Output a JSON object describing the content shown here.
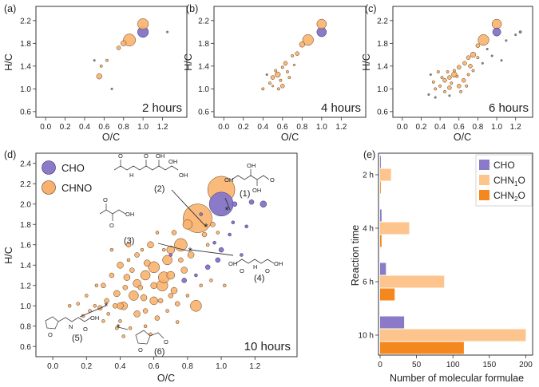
{
  "colors": {
    "cho": "#8a7ac8",
    "chno": "#f9b26e",
    "chn1o": "#fdc48e",
    "chn2o": "#f5871f",
    "grey": "#888888"
  },
  "vk_axes": {
    "xlabel": "O/C",
    "ylabel": "H/C",
    "xlim": [
      -0.1,
      1.45
    ],
    "ylim": [
      0.5,
      2.45
    ],
    "xticks": [
      "0.0",
      "0.2",
      "0.4",
      "0.6",
      "0.8",
      "1.0",
      "1.2"
    ],
    "yticks": [
      "0.6",
      "1.0",
      "1.4",
      "1.8",
      "2.2"
    ],
    "yticks_d": [
      "0.6",
      "0.8",
      "1.0",
      "1.2",
      "1.4",
      "1.6",
      "1.8",
      "2.0",
      "2.2",
      "2.4"
    ]
  },
  "panels": {
    "a": {
      "label": "(a)",
      "time": "2 hours"
    },
    "b": {
      "label": "(b)",
      "time": "4 hours"
    },
    "c": {
      "label": "(c)",
      "time": "6 hours"
    },
    "d": {
      "label": "(d)",
      "time": "10 hours",
      "legend": [
        "CHO",
        "CHNO"
      ]
    },
    "e": {
      "label": "(e)"
    }
  },
  "annotations": [
    "(1)",
    "(2)",
    "(3)",
    "(4)",
    "(5)",
    "(6)"
  ],
  "mol_text": {
    "oh": "OH",
    "o": "O",
    "n": "N",
    "h": "H"
  },
  "chart_data": [
    {
      "type": "scatter",
      "panel": "a",
      "points": [
        [
          1.0,
          2.0,
          8,
          "p"
        ],
        [
          1.0,
          2.14,
          8,
          "o"
        ],
        [
          0.86,
          1.86,
          9,
          "o"
        ],
        [
          0.8,
          1.8,
          4,
          "o"
        ],
        [
          0.75,
          1.72,
          3,
          "o"
        ],
        [
          0.55,
          1.22,
          4,
          "o"
        ],
        [
          0.57,
          1.4,
          2,
          "o"
        ],
        [
          0.63,
          1.5,
          2,
          "o"
        ],
        [
          0.5,
          1.5,
          1.5,
          "g"
        ],
        [
          1.25,
          2.0,
          1.5,
          "g"
        ],
        [
          0.68,
          1.0,
          1.5,
          "g"
        ]
      ]
    },
    {
      "type": "scatter",
      "panel": "b",
      "points": [
        [
          1.0,
          2.0,
          7,
          "p"
        ],
        [
          1.0,
          2.14,
          7,
          "o"
        ],
        [
          0.86,
          1.86,
          8,
          "o"
        ],
        [
          0.8,
          1.78,
          4,
          "o"
        ],
        [
          0.75,
          1.62,
          3,
          "o"
        ],
        [
          0.7,
          1.58,
          2,
          "o"
        ],
        [
          0.63,
          1.45,
          3,
          "o"
        ],
        [
          0.6,
          1.38,
          2,
          "o"
        ],
        [
          0.55,
          1.25,
          4,
          "o"
        ],
        [
          0.5,
          1.2,
          3,
          "o"
        ],
        [
          0.47,
          1.1,
          2,
          "o"
        ],
        [
          0.6,
          1.05,
          3,
          "o"
        ],
        [
          0.67,
          1.2,
          2,
          "o"
        ],
        [
          0.4,
          1.0,
          2,
          "o"
        ],
        [
          0.58,
          1.15,
          2,
          "o"
        ],
        [
          0.65,
          1.3,
          2,
          "o"
        ],
        [
          0.53,
          1.32,
          2,
          "o"
        ],
        [
          0.44,
          1.25,
          1.5,
          "g"
        ],
        [
          0.72,
          1.42,
          1.5,
          "o"
        ],
        [
          0.56,
          1.0,
          2,
          "o"
        ],
        [
          0.5,
          1.05,
          1.5,
          "o"
        ]
      ]
    },
    {
      "type": "scatter",
      "panel": "c",
      "points": [
        [
          1.0,
          2.0,
          6,
          "p"
        ],
        [
          1.0,
          2.14,
          7,
          "o"
        ],
        [
          0.86,
          1.86,
          8,
          "o"
        ],
        [
          0.8,
          1.76,
          3,
          "o"
        ],
        [
          0.75,
          1.6,
          4,
          "o"
        ],
        [
          0.7,
          1.55,
          3,
          "o"
        ],
        [
          0.66,
          1.45,
          3,
          "o"
        ],
        [
          0.6,
          1.38,
          3,
          "o"
        ],
        [
          0.55,
          1.25,
          4,
          "o"
        ],
        [
          0.5,
          1.2,
          3,
          "o"
        ],
        [
          0.45,
          1.15,
          3,
          "o"
        ],
        [
          0.4,
          1.05,
          2,
          "o"
        ],
        [
          0.6,
          1.05,
          3,
          "o"
        ],
        [
          0.65,
          1.15,
          3,
          "o"
        ],
        [
          0.7,
          1.25,
          2,
          "o"
        ],
        [
          0.55,
          1.32,
          2,
          "o"
        ],
        [
          0.72,
          1.4,
          3,
          "o"
        ],
        [
          0.8,
          1.55,
          2,
          "o"
        ],
        [
          0.35,
          1.0,
          2,
          "o"
        ],
        [
          0.5,
          1.02,
          3,
          "o"
        ],
        [
          0.45,
          0.95,
          2,
          "o"
        ],
        [
          0.3,
          1.25,
          1.5,
          "g"
        ],
        [
          0.38,
          1.3,
          2,
          "o"
        ],
        [
          0.62,
          0.95,
          2,
          "o"
        ],
        [
          0.68,
          1.05,
          2,
          "o"
        ],
        [
          0.58,
          1.22,
          2,
          "o"
        ],
        [
          0.52,
          1.1,
          2,
          "o"
        ],
        [
          0.42,
          1.2,
          2,
          "o"
        ],
        [
          0.75,
          1.32,
          2,
          "o"
        ],
        [
          0.9,
          1.7,
          1.5,
          "g"
        ],
        [
          0.95,
          1.58,
          1.5,
          "g"
        ],
        [
          1.05,
          1.5,
          1.5,
          "g"
        ],
        [
          1.1,
          1.85,
          1.5,
          "g"
        ],
        [
          1.2,
          1.95,
          1.5,
          "g"
        ],
        [
          1.25,
          2.0,
          2,
          "g"
        ],
        [
          0.85,
          1.45,
          1.5,
          "g"
        ],
        [
          0.28,
          0.9,
          1.5,
          "g"
        ],
        [
          0.35,
          0.85,
          1.5,
          "g"
        ],
        [
          0.5,
          0.88,
          1.5,
          "g"
        ],
        [
          0.33,
          1.12,
          2,
          "o"
        ],
        [
          0.48,
          1.3,
          2,
          "o"
        ]
      ]
    },
    {
      "type": "scatter",
      "panel": "d",
      "points": [
        [
          1.0,
          2.0,
          15,
          "p"
        ],
        [
          1.0,
          2.14,
          17,
          "o"
        ],
        [
          0.86,
          1.86,
          18,
          "o"
        ],
        [
          0.8,
          1.8,
          6,
          "o"
        ],
        [
          0.76,
          1.6,
          8,
          "o"
        ],
        [
          0.7,
          1.55,
          5,
          "o"
        ],
        [
          0.68,
          1.45,
          6,
          "o"
        ],
        [
          0.6,
          1.38,
          7,
          "o"
        ],
        [
          0.55,
          1.3,
          6,
          "o"
        ],
        [
          0.5,
          1.22,
          5,
          "o"
        ],
        [
          0.48,
          1.1,
          6,
          "o"
        ],
        [
          0.42,
          1.0,
          5,
          "o"
        ],
        [
          0.4,
          1.0,
          4,
          "o"
        ],
        [
          0.6,
          1.05,
          5,
          "o"
        ],
        [
          0.65,
          1.2,
          7,
          "o"
        ],
        [
          0.7,
          1.3,
          5,
          "o"
        ],
        [
          0.56,
          1.42,
          4,
          "o"
        ],
        [
          0.44,
          1.28,
          4,
          "o"
        ],
        [
          0.38,
          1.12,
          4,
          "o"
        ],
        [
          0.32,
          1.05,
          3,
          "o"
        ],
        [
          0.28,
          0.98,
          3,
          "o"
        ],
        [
          0.5,
          0.92,
          4,
          "o"
        ],
        [
          0.55,
          0.95,
          3,
          "o"
        ],
        [
          0.62,
          0.88,
          3,
          "o"
        ],
        [
          0.72,
          1.15,
          4,
          "o"
        ],
        [
          0.78,
          1.35,
          4,
          "o"
        ],
        [
          0.82,
          1.5,
          4,
          "o"
        ],
        [
          0.66,
          1.28,
          7,
          "o"
        ],
        [
          0.85,
          1.0,
          7,
          "o"
        ],
        [
          0.58,
          1.6,
          4,
          "o"
        ],
        [
          0.5,
          1.5,
          3,
          "o"
        ],
        [
          0.45,
          1.6,
          3,
          "o"
        ],
        [
          0.4,
          1.4,
          4,
          "o"
        ],
        [
          0.35,
          1.3,
          3,
          "o"
        ],
        [
          0.3,
          1.2,
          3,
          "o"
        ],
        [
          0.25,
          1.0,
          2,
          "o"
        ],
        [
          0.22,
          0.95,
          2,
          "o"
        ],
        [
          0.3,
          0.85,
          2,
          "o"
        ],
        [
          0.4,
          0.85,
          2,
          "o"
        ],
        [
          0.46,
          0.78,
          2,
          "o"
        ],
        [
          0.9,
          1.7,
          3,
          "o"
        ],
        [
          0.95,
          1.8,
          3,
          "o"
        ],
        [
          0.92,
          1.6,
          2,
          "o"
        ],
        [
          0.62,
          1.72,
          2,
          "o"
        ],
        [
          0.72,
          1.72,
          3,
          "o"
        ],
        [
          0.54,
          1.08,
          4,
          "o"
        ],
        [
          0.47,
          1.35,
          3,
          "o"
        ],
        [
          0.74,
          1.02,
          3,
          "o"
        ],
        [
          1.08,
          2.0,
          3,
          "p"
        ],
        [
          1.12,
          1.5,
          2,
          "p"
        ],
        [
          1.18,
          2.02,
          3,
          "p"
        ],
        [
          1.15,
          1.78,
          2,
          "p"
        ],
        [
          1.0,
          1.55,
          3,
          "p"
        ],
        [
          0.98,
          1.45,
          3,
          "p"
        ],
        [
          0.92,
          1.38,
          3,
          "p"
        ],
        [
          0.85,
          1.3,
          2,
          "p"
        ],
        [
          0.78,
          1.25,
          3,
          "p"
        ],
        [
          0.7,
          1.5,
          2,
          "p"
        ],
        [
          0.96,
          1.62,
          2,
          "p"
        ],
        [
          1.05,
          1.7,
          2,
          "p"
        ],
        [
          1.07,
          1.82,
          2,
          "p"
        ],
        [
          0.88,
          1.9,
          2,
          "p"
        ],
        [
          1.25,
          2.0,
          4,
          "p"
        ],
        [
          0.35,
          1.55,
          2,
          "o"
        ],
        [
          0.2,
          1.1,
          2,
          "o"
        ],
        [
          0.15,
          1.02,
          2,
          "o"
        ],
        [
          0.42,
          0.7,
          2,
          "o"
        ],
        [
          0.55,
          0.8,
          2,
          "o"
        ],
        [
          0.68,
          0.95,
          2,
          "o"
        ],
        [
          0.8,
          1.1,
          2,
          "o"
        ],
        [
          0.88,
          1.2,
          2,
          "o"
        ],
        [
          0.6,
          1.2,
          4,
          "o"
        ],
        [
          0.52,
          1.18,
          3,
          "o"
        ],
        [
          0.43,
          1.18,
          3,
          "o"
        ],
        [
          0.37,
          1.0,
          3,
          "o"
        ],
        [
          0.33,
          0.92,
          2,
          "o"
        ],
        [
          0.64,
          1.05,
          3,
          "o"
        ],
        [
          0.7,
          1.1,
          3,
          "o"
        ],
        [
          0.76,
          1.45,
          3,
          "o"
        ],
        [
          0.66,
          1.55,
          2,
          "o"
        ],
        [
          0.53,
          1.55,
          2,
          "o"
        ],
        [
          0.45,
          1.45,
          2,
          "o"
        ],
        [
          0.26,
          1.2,
          2,
          "o"
        ],
        [
          0.18,
          0.9,
          2,
          "o"
        ],
        [
          0.1,
          1.0,
          2,
          "o"
        ],
        [
          0.58,
          0.72,
          2,
          "o"
        ],
        [
          0.38,
          0.78,
          2,
          "o"
        ],
        [
          0.74,
          0.84,
          2,
          "o"
        ],
        [
          0.94,
          1.25,
          2,
          "o"
        ],
        [
          1.02,
          1.2,
          2,
          "o"
        ],
        [
          0.98,
          1.72,
          2,
          "o"
        ]
      ]
    },
    {
      "type": "bar",
      "panel": "e",
      "orientation": "horizontal",
      "categories": [
        "2 h",
        "4 h",
        "6 h",
        "10 h"
      ],
      "series": [
        {
          "name": "CHO",
          "values": [
            1,
            2,
            8,
            33
          ]
        },
        {
          "name": "CHN1O",
          "values": [
            15,
            40,
            88,
            200
          ]
        },
        {
          "name": "CHN2O",
          "values": [
            0,
            2,
            20,
            115
          ]
        }
      ],
      "xlabel": "Number of molecular formulae",
      "ylabel": "Reaction time",
      "xticks": [
        "0",
        "50",
        "100",
        "150",
        "200"
      ],
      "xlim": [
        0,
        205
      ],
      "legend": [
        "CHO",
        "CHN",
        "1",
        "O",
        "CHN",
        "2",
        "O"
      ]
    }
  ]
}
